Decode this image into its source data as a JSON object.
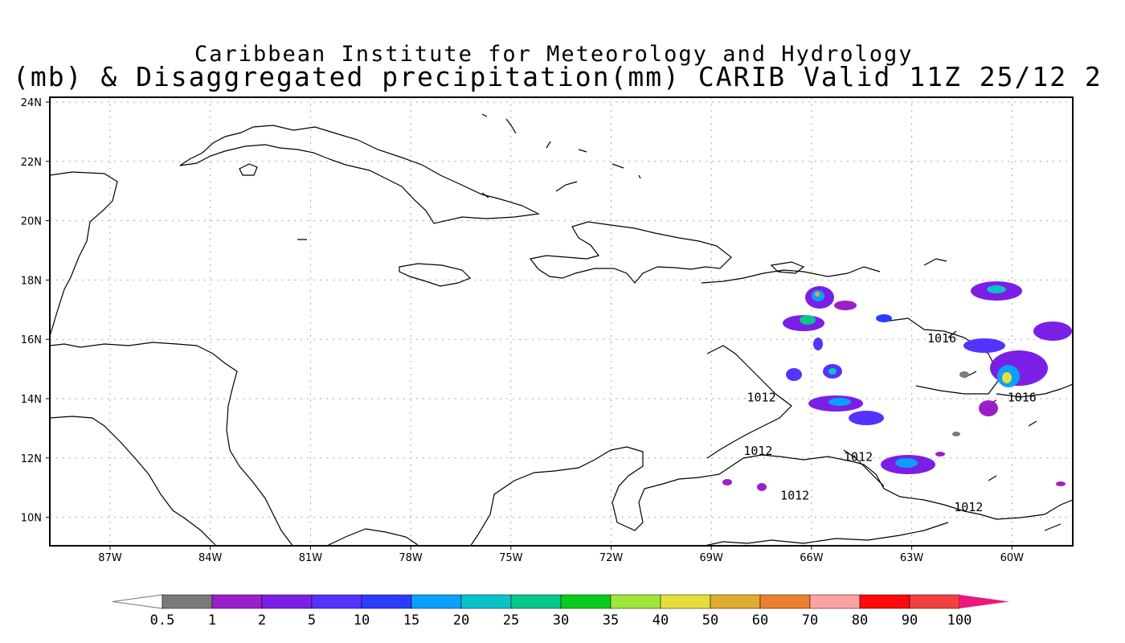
{
  "title": {
    "line1": "Caribbean Institute for Meteorology and Hydrology",
    "line2": "(mb) & Disaggregated precipitation(mm) CARIB Valid 11Z 25/12 2"
  },
  "axes": {
    "lat_labels": [
      "24N",
      "22N",
      "20N",
      "18N",
      "16N",
      "14N",
      "12N",
      "10N"
    ],
    "lon_labels": [
      "87W",
      "84W",
      "81W",
      "78W",
      "75W",
      "72W",
      "69W",
      "66W",
      "63W",
      "60W"
    ]
  },
  "colorbar": {
    "labels": [
      "0.5",
      "1",
      "2",
      "5",
      "10",
      "15",
      "20",
      "25",
      "30",
      "35",
      "40",
      "50",
      "60",
      "70",
      "80",
      "90",
      "100"
    ],
    "colors": [
      "#7a7a7a",
      "#9a1fc9",
      "#7b1fe6",
      "#5533ff",
      "#2b3cff",
      "#0aa0ff",
      "#08c3c8",
      "#05c98a",
      "#0acb1f",
      "#9ee63a",
      "#e6de3a",
      "#e0ac2f",
      "#ec8030",
      "#fba3a3",
      "#ff0a0a",
      "#f43f3f"
    ],
    "end_left": "#ffffff",
    "end_right": "#e8187e"
  },
  "isobar_labels": [
    {
      "text": "1016",
      "lon": -62.1,
      "lat": 15.9
    },
    {
      "text": "1016",
      "lon": -59.7,
      "lat": 13.9
    },
    {
      "text": "1012",
      "lon": -67.5,
      "lat": 13.9
    },
    {
      "text": "1012",
      "lon": -67.6,
      "lat": 12.1
    },
    {
      "text": "1012",
      "lon": -64.6,
      "lat": 11.9
    },
    {
      "text": "1012",
      "lon": -66.5,
      "lat": 10.6
    },
    {
      "text": "1012",
      "lon": -61.3,
      "lat": 10.2
    }
  ]
}
